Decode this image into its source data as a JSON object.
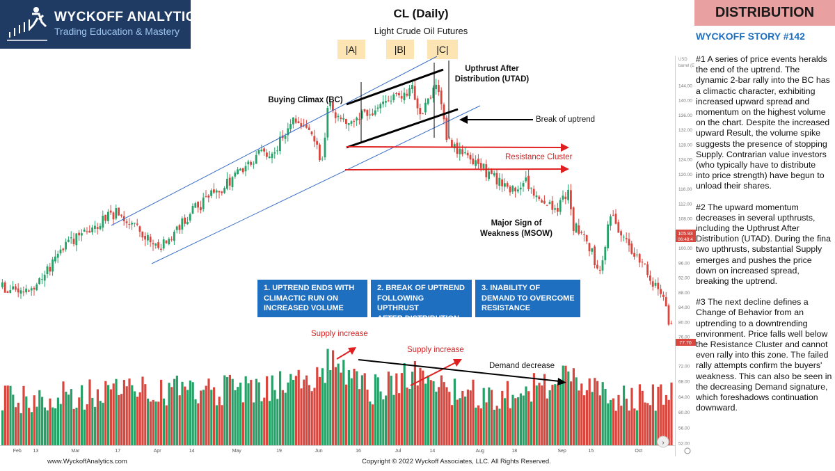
{
  "brand": {
    "name": "WYCKOFF ANALYTICS",
    "tagline": "Trading Education & Mastery"
  },
  "header": {
    "title": "CL (Daily)",
    "subtitle": "Light Crude Oil Futures"
  },
  "phases": [
    "|A|",
    "|B|",
    "|C|"
  ],
  "sidebar": {
    "banner": "DISTRIBUTION",
    "story": "WYCKOFF STORY #142",
    "paragraphs": [
      [
        "#1 A series of price events heralds",
        "the end of the uptrend. The",
        "dynamic 2-bar rally into the BC has",
        "a climactic character, exhibiting",
        "increased upward spread and",
        "momentum on the highest volume",
        "on the chart. Despite the increased",
        "upward Result, the volume spike",
        "suggests the presence of stopping",
        "Supply. Contrarian value investors",
        "(who typically have to distribute",
        "into price strength) have begun to",
        "unload their shares."
      ],
      [
        "#2 The upward momentum",
        "decreases in several upthrusts,",
        "including the Upthrust After",
        "Distribution (UTAD). During the fina",
        "two upthrusts, substantial Supply",
        "emerges and pushes the price",
        "down on increased spread,",
        "breaking the uptrend."
      ],
      [
        "#3 The next decline defines a",
        "Change of Behavior from an",
        "uptrending to a downtrending",
        "environment. Price falls well below",
        "the Resistance Cluster and cannot",
        "even rally into this zone. The failed",
        "rally attempts confirm the buyers'",
        "weakness. This can also be seen in",
        "the decreasing Demand signature,",
        "which foreshadows continuation",
        "downward."
      ]
    ]
  },
  "annotations": {
    "bc": "Buying Climax (BC)",
    "utad_1": "Upthrust After",
    "utad_2": "Distribution (UTAD)",
    "break": "Break of uptrend",
    "resistance": "Resistance Cluster",
    "msow_1": "Major Sign of",
    "msow_2": "Weakness (MSOW)",
    "supply1": "Supply increase",
    "supply2": "Supply increase",
    "demand": "Demand decrease"
  },
  "boxes": [
    [
      "1. UPTREND ENDS WITH",
      "CLIMACTIC RUN ON",
      "INCREASED VOLUME"
    ],
    [
      "2. BREAK OF UPTREND",
      "FOLLOWING UPTHRUST",
      "AFTER DISTRIBUTION"
    ],
    [
      "3. INABILITY OF",
      "DEMAND TO OVERCOME",
      "RESISTANCE"
    ]
  ],
  "footer": {
    "site": "www.WyckoffAnalytics.com",
    "copyright": "Copyright © 2022 Wyckoff Associates, LLC. All Rights Reserved."
  },
  "colors": {
    "up": "#26a269",
    "down": "#d9463e",
    "accent": "#1f6fc0",
    "channel": "#3a6fc8",
    "resistance": "#e02020"
  },
  "chart_data": {
    "type": "candlestick",
    "title": "CL (Daily)",
    "subtitle": "Light Crude Oil Futures",
    "price_unit": "barrel (E",
    "ylim": [
      52,
      150
    ],
    "price_ticks": [
      144,
      140,
      136,
      132,
      128,
      124,
      120,
      116,
      112,
      108,
      104,
      100,
      96,
      92,
      88,
      84,
      80,
      76
    ],
    "price_tick_labels": [
      "144.00",
      "140.00",
      "136.00",
      "132.00",
      "128.00",
      "124.00",
      "120.00",
      "116.00",
      "112.00",
      "108.00",
      "104.00",
      "100.00",
      "96.00",
      "92.00",
      "88.00",
      "84.00",
      "80.00",
      "76.00"
    ],
    "volume_tick_labels": [
      "72.00",
      "68.00",
      "64.00",
      "60.00",
      "56.00",
      "52.00"
    ],
    "volume_ticks": [
      72,
      68,
      64,
      60,
      56,
      52
    ],
    "last_price_label": [
      "105.93",
      "06:48:4"
    ],
    "last_close_label": "77.70",
    "x_labels": [
      {
        "t": "Feb",
        "d": 6
      },
      {
        "t": "13",
        "d": 13
      },
      {
        "t": "Mar",
        "d": 28
      },
      {
        "t": "17",
        "d": 44
      },
      {
        "t": "Apr",
        "d": 59
      },
      {
        "t": "14",
        "d": 72
      },
      {
        "t": "May",
        "d": 89
      },
      {
        "t": "19",
        "d": 105
      },
      {
        "t": "Jun",
        "d": 120
      },
      {
        "t": "16",
        "d": 135
      },
      {
        "t": "Jul",
        "d": 150
      },
      {
        "t": "14",
        "d": 163
      },
      {
        "t": "Aug",
        "d": 181
      },
      {
        "t": "18",
        "d": 194
      },
      {
        "t": "Sep",
        "d": 212
      },
      {
        "t": "15",
        "d": 223
      },
      {
        "t": "Oct",
        "d": 241
      }
    ],
    "price_path": [
      [
        0,
        89.5
      ],
      [
        12,
        88
      ],
      [
        22,
        100
      ],
      [
        30,
        104
      ],
      [
        44,
        110
      ],
      [
        60,
        100
      ],
      [
        72,
        110
      ],
      [
        89,
        120
      ],
      [
        98,
        126
      ],
      [
        102,
        125
      ],
      [
        110,
        135
      ],
      [
        118,
        130
      ],
      [
        121,
        123
      ],
      [
        123,
        139
      ],
      [
        130,
        133
      ],
      [
        146,
        140
      ],
      [
        155,
        143
      ],
      [
        158,
        135
      ],
      [
        164,
        145
      ],
      [
        166,
        138
      ],
      [
        168,
        130
      ],
      [
        172,
        126
      ],
      [
        178,
        124
      ],
      [
        184,
        120
      ],
      [
        192,
        115
      ],
      [
        198,
        118
      ],
      [
        204,
        112
      ],
      [
        210,
        110
      ],
      [
        214,
        116
      ],
      [
        216,
        106
      ],
      [
        220,
        104
      ],
      [
        226,
        93
      ],
      [
        230,
        109
      ],
      [
        236,
        102
      ],
      [
        240,
        98
      ],
      [
        244,
        94
      ],
      [
        248,
        88
      ],
      [
        250,
        87
      ],
      [
        252,
        80
      ],
      [
        253,
        78
      ]
    ],
    "volume_path": [
      [
        0,
        63
      ],
      [
        40,
        65
      ],
      [
        90,
        66
      ],
      [
        120,
        68
      ],
      [
        124,
        74
      ],
      [
        140,
        66
      ],
      [
        154,
        70
      ],
      [
        166,
        66
      ],
      [
        186,
        64
      ],
      [
        210,
        68
      ],
      [
        212,
        69
      ],
      [
        230,
        64
      ],
      [
        253,
        64
      ]
    ],
    "annotations": [
      "Buying Climax (BC)",
      "Upthrust After Distribution (UTAD)",
      "Break of uptrend",
      "Resistance Cluster",
      "Major Sign of Weakness (MSOW)",
      "Supply increase",
      "Supply increase",
      "Demand decrease"
    ],
    "resistance_levels": [
      128.5,
      122
    ]
  }
}
